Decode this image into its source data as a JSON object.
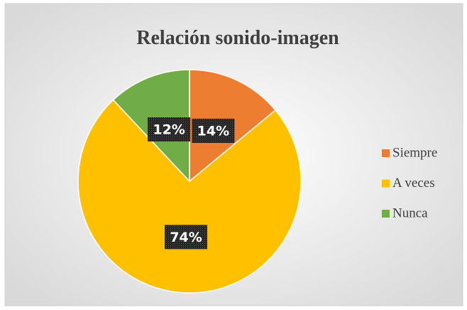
{
  "chart_data": {
    "type": "pie",
    "title": "Relación sonido-imagen",
    "categories": [
      "Siempre",
      "A veces",
      "Nunca"
    ],
    "values": [
      14,
      74,
      12
    ],
    "value_labels": [
      "14%",
      "74%",
      "12%"
    ],
    "colors": [
      "#ED7D31",
      "#FFC000",
      "#70AD47"
    ],
    "legend": "right"
  }
}
